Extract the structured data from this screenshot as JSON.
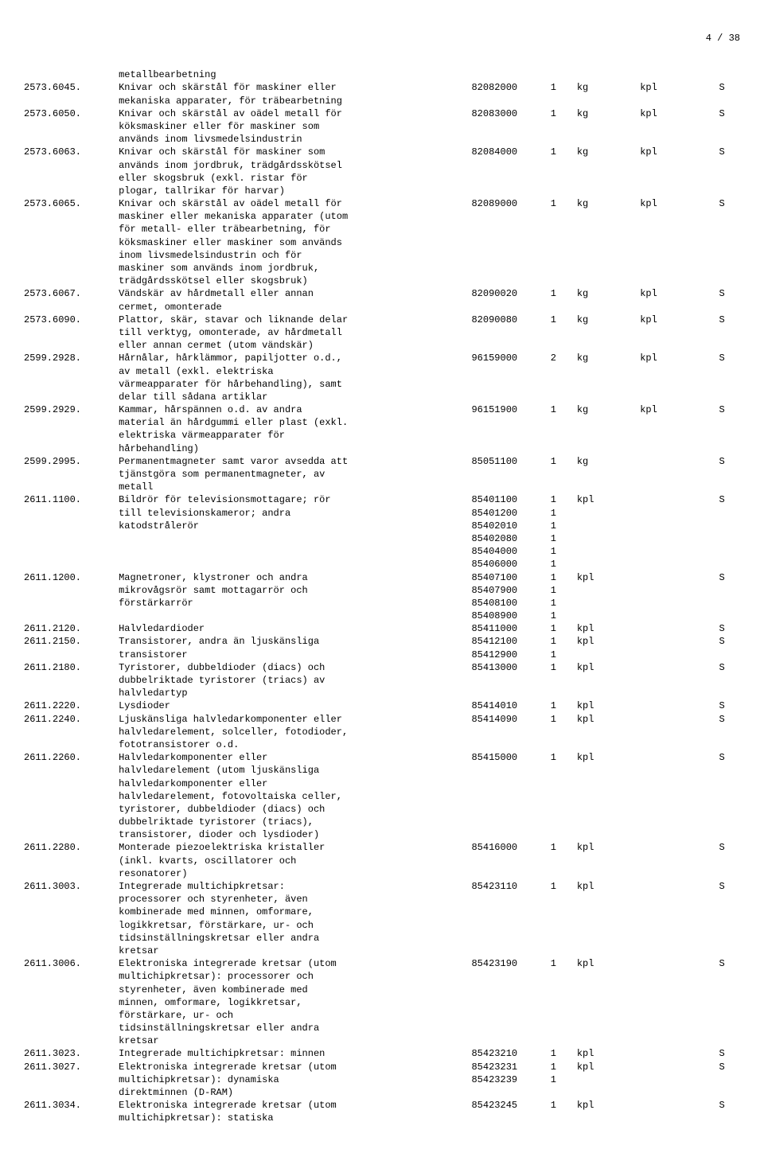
{
  "page_number": "4 / 38",
  "rows": [
    {
      "code": "",
      "desc": "metallbearbetning",
      "cn": [],
      "s": ""
    },
    {
      "code": "2573.6045.",
      "desc": "Knivar och skärstål för maskiner eller mekaniska apparater, för träbearbetning",
      "cn": [
        [
          "82082000",
          "1",
          "kg",
          "kpl"
        ]
      ],
      "s": "S"
    },
    {
      "code": "2573.6050.",
      "desc": "Knivar och skärstål av oädel metall för köksmaskiner eller för maskiner som används inom livsmedelsindustrin",
      "cn": [
        [
          "82083000",
          "1",
          "kg",
          "kpl"
        ]
      ],
      "s": "S"
    },
    {
      "code": "2573.6063.",
      "desc": "Knivar och skärstål för maskiner som används inom jordbruk, trädgårdsskötsel eller skogsbruk (exkl. ristar för plogar, tallrikar för harvar)",
      "cn": [
        [
          "82084000",
          "1",
          "kg",
          "kpl"
        ]
      ],
      "s": "S"
    },
    {
      "code": "2573.6065.",
      "desc": "Knivar och skärstål av oädel metall för maskiner eller mekaniska apparater (utom för metall- eller träbearbetning, för köksmaskiner eller maskiner som används inom livsmedelsindustrin och för maskiner som används inom jordbruk, trädgårdsskötsel eller skogsbruk)",
      "cn": [
        [
          "82089000",
          "1",
          "kg",
          "kpl"
        ]
      ],
      "s": "S"
    },
    {
      "code": "2573.6067.",
      "desc": "Vändskär av hårdmetall eller annan cermet, omonterade",
      "cn": [
        [
          "82090020",
          "1",
          "kg",
          "kpl"
        ]
      ],
      "s": "S"
    },
    {
      "code": "2573.6090.",
      "desc": "Plattor, skär, stavar och liknande delar till verktyg, omonterade, av hårdmetall eller annan cermet (utom vändskär)",
      "cn": [
        [
          "82090080",
          "1",
          "kg",
          "kpl"
        ]
      ],
      "s": "S"
    },
    {
      "code": "2599.2928.",
      "desc": "Hårnålar, hårklämmor, papiljotter o.d., av metall (exkl. elektriska värmeapparater för hårbehandling), samt delar till sådana artiklar",
      "cn": [
        [
          "96159000",
          "2",
          "kg",
          "kpl"
        ]
      ],
      "s": "S"
    },
    {
      "code": "2599.2929.",
      "desc": "Kammar, hårspännen o.d. av andra material än hårdgummi eller plast (exkl. elektriska värmeapparater för hårbehandling)",
      "cn": [
        [
          "96151900",
          "1",
          "kg",
          "kpl"
        ]
      ],
      "s": "S"
    },
    {
      "code": "2599.2995.",
      "desc": "Permanentmagneter samt varor avsedda att tjänstgöra som permanentmagneter, av metall",
      "cn": [
        [
          "85051100",
          "1",
          "kg",
          ""
        ]
      ],
      "s": "S"
    },
    {
      "code": "2611.1100.",
      "desc": "Bildrör för televisionsmottagare; rör till televisionskameror; andra katodstrålerör",
      "cn": [
        [
          "85401100",
          "1",
          "kpl",
          ""
        ],
        [
          "85401200",
          "1",
          "",
          ""
        ],
        [
          "85402010",
          "1",
          "",
          ""
        ],
        [
          "85402080",
          "1",
          "",
          ""
        ],
        [
          "85404000",
          "1",
          "",
          ""
        ],
        [
          "85406000",
          "1",
          "",
          ""
        ]
      ],
      "s": "S"
    },
    {
      "code": "2611.1200.",
      "desc": "Magnetroner, klystroner och andra mikrovågsrör samt mottagarrör och förstärkarrör",
      "cn": [
        [
          "85407100",
          "1",
          "kpl",
          ""
        ],
        [
          "85407900",
          "1",
          "",
          ""
        ],
        [
          "85408100",
          "1",
          "",
          ""
        ],
        [
          "85408900",
          "1",
          "",
          ""
        ]
      ],
      "s": "S"
    },
    {
      "code": "2611.2120.",
      "desc": "Halvledardioder",
      "cn": [
        [
          "85411000",
          "1",
          "kpl",
          ""
        ]
      ],
      "s": "S"
    },
    {
      "code": "2611.2150.",
      "desc": "Transistorer, andra än ljuskänsliga transistorer",
      "cn": [
        [
          "85412100",
          "1",
          "kpl",
          ""
        ],
        [
          "85412900",
          "1",
          "",
          ""
        ]
      ],
      "s": "S"
    },
    {
      "code": "2611.2180.",
      "desc": "Tyristorer, dubbeldioder (diacs) och dubbelriktade tyristorer (triacs) av halvledartyp",
      "cn": [
        [
          "85413000",
          "1",
          "kpl",
          ""
        ]
      ],
      "s": "S"
    },
    {
      "code": "2611.2220.",
      "desc": "Lysdioder",
      "cn": [
        [
          "85414010",
          "1",
          "kpl",
          ""
        ]
      ],
      "s": "S"
    },
    {
      "code": "2611.2240.",
      "desc": "Ljuskänsliga halvledarkomponenter eller halvledarelement, solceller, fotodioder, fototransistorer o.d.",
      "cn": [
        [
          "85414090",
          "1",
          "kpl",
          ""
        ]
      ],
      "s": "S"
    },
    {
      "code": "2611.2260.",
      "desc": "Halvledarkomponenter eller halvledarelement (utom ljuskänsliga halvledarkomponenter eller halvledarelement, fotovoltaiska celler, tyristorer, dubbeldioder (diacs) och dubbelriktade tyristorer (triacs), transistorer, dioder och lysdioder)",
      "cn": [
        [
          "85415000",
          "1",
          "kpl",
          ""
        ]
      ],
      "s": "S"
    },
    {
      "code": "2611.2280.",
      "desc": "Monterade piezoelektriska kristaller (inkl. kvarts, oscillatorer och resonatorer)",
      "cn": [
        [
          "85416000",
          "1",
          "kpl",
          ""
        ]
      ],
      "s": "S"
    },
    {
      "code": "2611.3003.",
      "desc": "Integrerade multichipkretsar: processorer och styrenheter, även kombinerade med minnen, omformare, logikkretsar, förstärkare, ur- och tidsinställningskretsar eller andra kretsar",
      "cn": [
        [
          "85423110",
          "1",
          "kpl",
          ""
        ]
      ],
      "s": "S"
    },
    {
      "code": "2611.3006.",
      "desc": "Elektroniska integrerade kretsar (utom multichipkretsar): processorer och styrenheter, även kombinerade med minnen, omformare, logikkretsar, förstärkare, ur- och tidsinställningskretsar eller andra kretsar",
      "cn": [
        [
          "85423190",
          "1",
          "kpl",
          ""
        ]
      ],
      "s": "S"
    },
    {
      "code": "2611.3023.",
      "desc": "Integrerade multichipkretsar: minnen",
      "cn": [
        [
          "85423210",
          "1",
          "kpl",
          ""
        ]
      ],
      "s": "S"
    },
    {
      "code": "2611.3027.",
      "desc": "Elektroniska integrerade kretsar (utom multichipkretsar): dynamiska direktminnen (D-RAM)",
      "cn": [
        [
          "85423231",
          "1",
          "kpl",
          ""
        ],
        [
          "85423239",
          "1",
          "",
          ""
        ]
      ],
      "s": "S"
    },
    {
      "code": "2611.3034.",
      "desc": "Elektroniska integrerade kretsar (utom multichipkretsar): statiska",
      "cn": [
        [
          "85423245",
          "1",
          "kpl",
          ""
        ]
      ],
      "s": "S"
    }
  ]
}
